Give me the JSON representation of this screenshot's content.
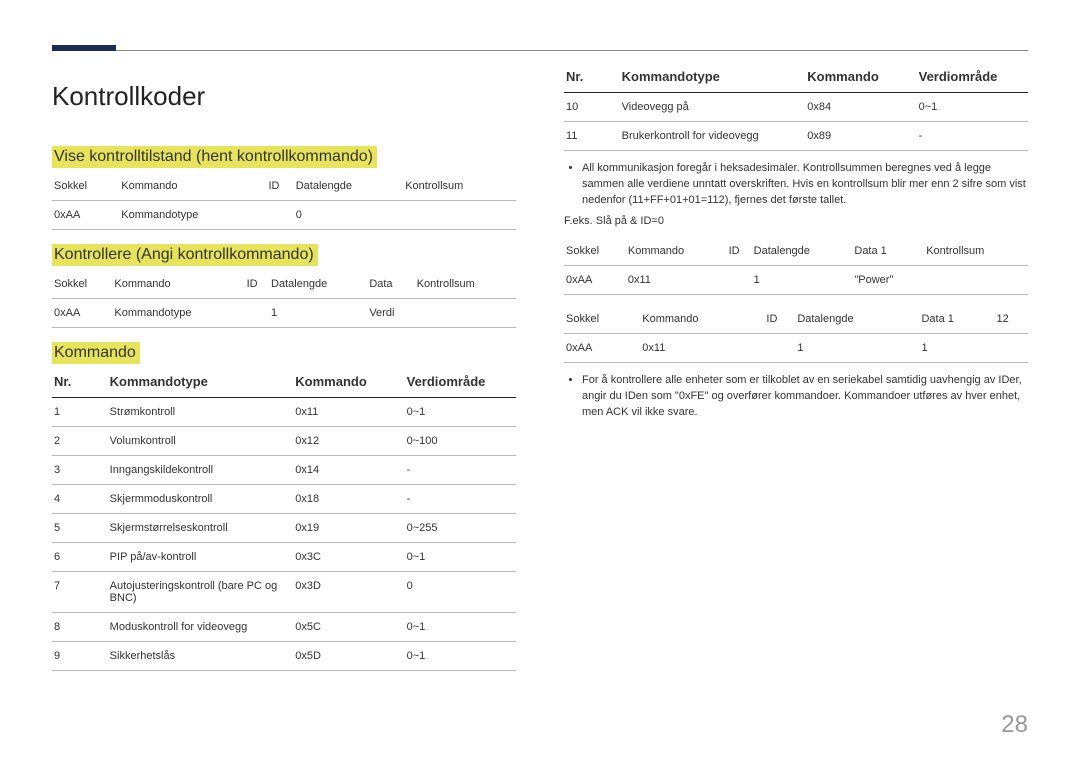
{
  "title": "Kontrollkoder",
  "pageNumber": "28",
  "sec1": {
    "heading": "Vise kontrolltilstand (hent kontrollkommando)",
    "headers": [
      "Sokkel",
      "Kommando",
      "ID",
      "Datalengde",
      "Kontrollsum"
    ],
    "row": [
      "0xAA",
      "Kommandotype",
      "",
      "0",
      ""
    ]
  },
  "sec2": {
    "heading": "Kontrollere (Angi kontrollkommando)",
    "headers": [
      "Sokkel",
      "Kommando",
      "ID",
      "Datalengde",
      "Data",
      "Kontrollsum"
    ],
    "row": [
      "0xAA",
      "Kommandotype",
      "",
      "1",
      "Verdi",
      ""
    ]
  },
  "cmd": {
    "heading": "Kommando",
    "headers": [
      "Nr.",
      "Kommandotype",
      "Kommando",
      "Verdiområde"
    ],
    "rowsA": [
      [
        "1",
        "Strømkontroll",
        "0x11",
        "0~1"
      ],
      [
        "2",
        "Volumkontroll",
        "0x12",
        "0~100"
      ],
      [
        "3",
        "Inngangskildekontroll",
        "0x14",
        "-"
      ],
      [
        "4",
        "Skjermmoduskontroll",
        "0x18",
        "-"
      ],
      [
        "5",
        "Skjermstørrelseskontroll",
        "0x19",
        "0~255"
      ],
      [
        "6",
        "PIP på/av-kontroll",
        "0x3C",
        "0~1"
      ],
      [
        "7",
        "Autojusteringskontroll (bare PC og BNC)",
        "0x3D",
        "0"
      ],
      [
        "8",
        "Moduskontroll for videovegg",
        "0x5C",
        "0~1"
      ],
      [
        "9",
        "Sikkerhetslås",
        "0x5D",
        "0~1"
      ]
    ],
    "rowsB": [
      [
        "10",
        "Videovegg på",
        "0x84",
        "0~1"
      ],
      [
        "11",
        "Brukerkontroll for videovegg",
        "0x89",
        "-"
      ]
    ]
  },
  "bullet1": "All kommunikasjon foregår i heksadesimaler. Kontrollsummen beregnes ved å legge sammen alle verdiene unntatt overskriften. Hvis en kontrollsum blir mer enn 2 sifre som vist nedenfor (11+FF+01+01=112), fjernes det første tallet.",
  "example": "F.eks. Slå på & ID=0",
  "ex1": {
    "headers": [
      "Sokkel",
      "Kommando",
      "ID",
      "Datalengde",
      "Data 1",
      "Kontrollsum"
    ],
    "row": [
      "0xAA",
      "0x11",
      "",
      "1",
      "\"Power\"",
      ""
    ]
  },
  "ex2": {
    "headers": [
      "Sokkel",
      "Kommando",
      "ID",
      "Datalengde",
      "Data 1",
      "12"
    ],
    "row": [
      "0xAA",
      "0x11",
      "",
      "1",
      "1",
      ""
    ]
  },
  "bullet2": "For å kontrollere alle enheter som er tilkoblet av en seriekabel samtidig uavhengig av IDer, angir du IDen som \"0xFE\" og overfører kommandoer. Kommandoer utføres av hver enhet, men ACK vil ikke svare."
}
